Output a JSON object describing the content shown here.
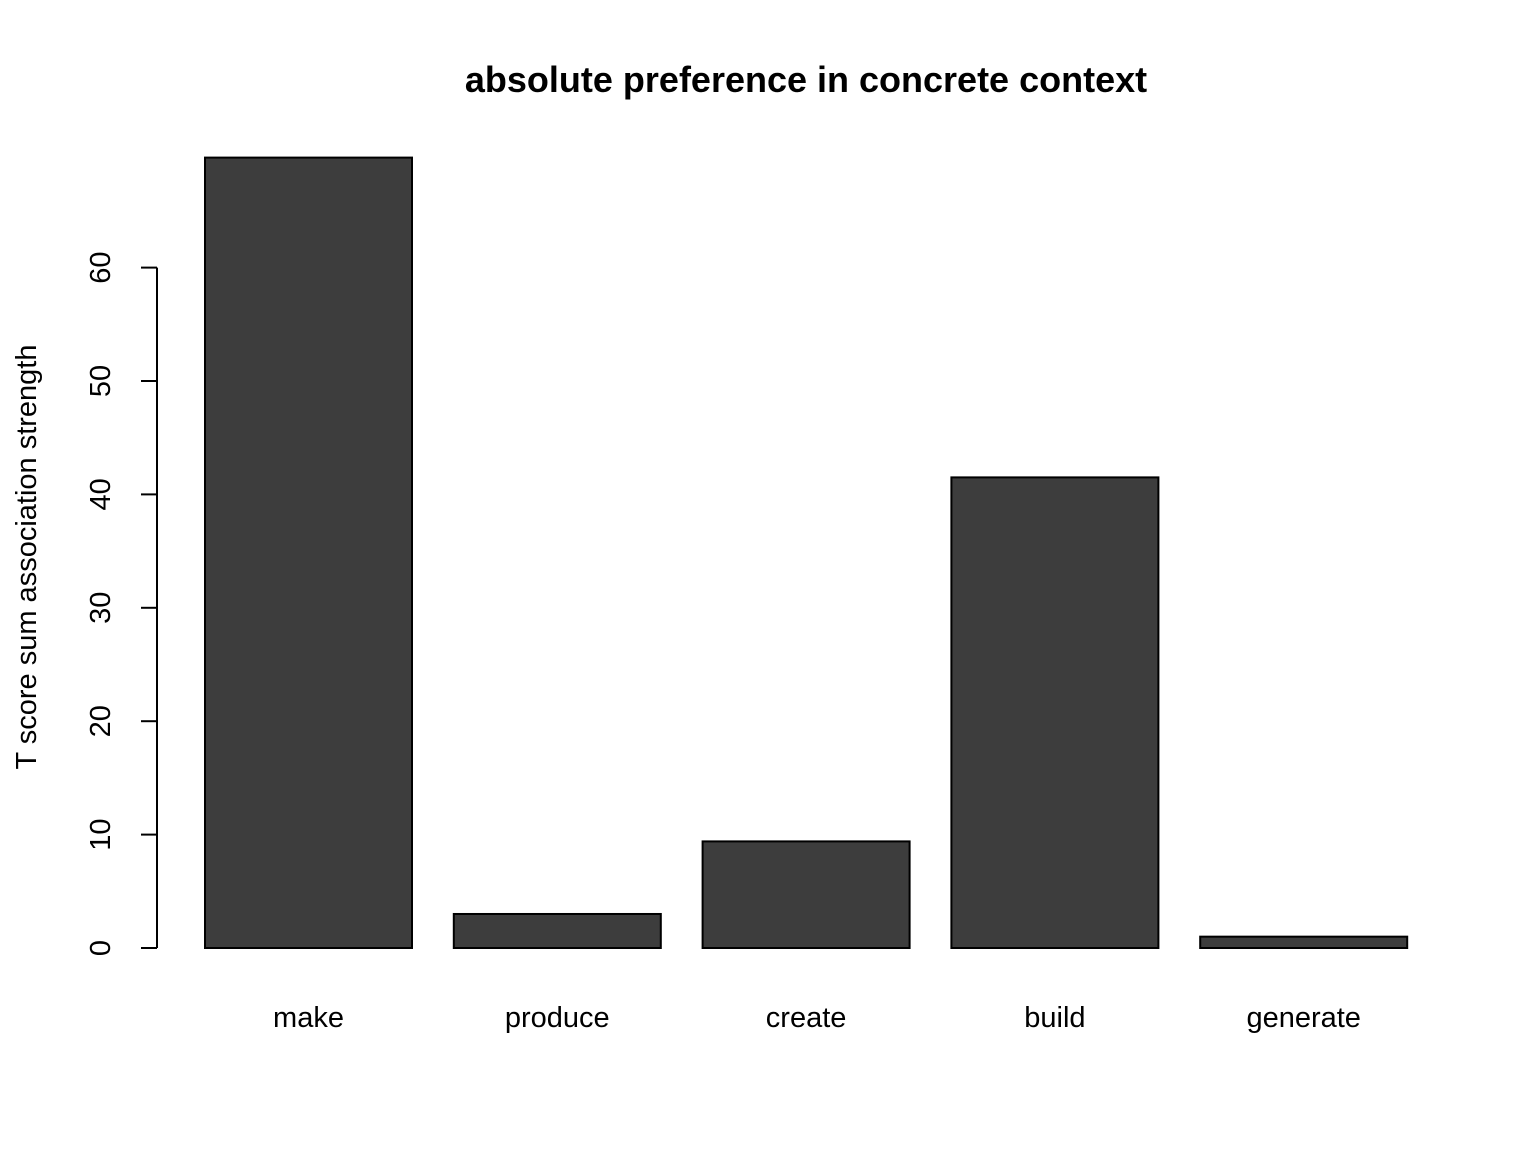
{
  "chart_data": {
    "type": "bar",
    "title": "absolute preference in concrete context",
    "xlabel": "",
    "ylabel": "T score sum association strength",
    "categories": [
      "make",
      "produce",
      "create",
      "build",
      "generate"
    ],
    "values": [
      69.7,
      3.0,
      9.4,
      41.5,
      1.0
    ],
    "yticks": [
      0,
      10,
      20,
      30,
      40,
      50,
      60
    ],
    "ylim": [
      0,
      70
    ],
    "bar_color": "#3d3d3d",
    "grid": false,
    "legend": "none"
  }
}
